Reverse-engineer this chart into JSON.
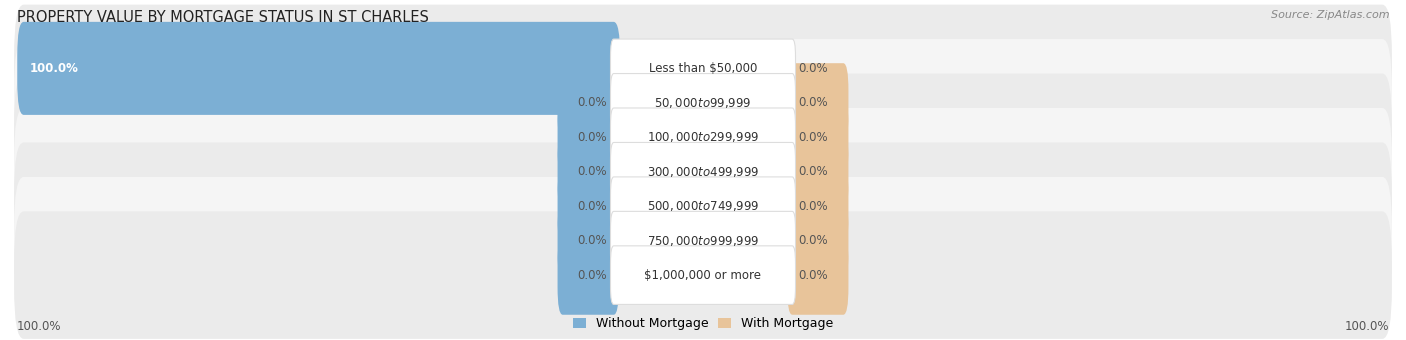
{
  "title": "PROPERTY VALUE BY MORTGAGE STATUS IN ST CHARLES",
  "source": "Source: ZipAtlas.com",
  "categories": [
    "Less than $50,000",
    "$50,000 to $99,999",
    "$100,000 to $299,999",
    "$300,000 to $499,999",
    "$500,000 to $749,999",
    "$750,000 to $999,999",
    "$1,000,000 or more"
  ],
  "without_mortgage": [
    100.0,
    0.0,
    0.0,
    0.0,
    0.0,
    0.0,
    0.0
  ],
  "with_mortgage": [
    0.0,
    0.0,
    0.0,
    0.0,
    0.0,
    0.0,
    0.0
  ],
  "without_mortgage_color": "#7cafd4",
  "with_mortgage_color": "#e8c49a",
  "row_bg_color_odd": "#ebebeb",
  "row_bg_color_even": "#f5f5f5",
  "center_label_bg": "#ffffff",
  "center_label_edge": "#dddddd",
  "title_color": "#222222",
  "value_fontsize": 8.5,
  "category_fontsize": 8.5,
  "title_fontsize": 10.5,
  "max_value": 100.0,
  "x_axis_left_label": "100.0%",
  "x_axis_right_label": "100.0%",
  "legend_without": "Without Mortgage",
  "legend_with": "With Mortgage"
}
